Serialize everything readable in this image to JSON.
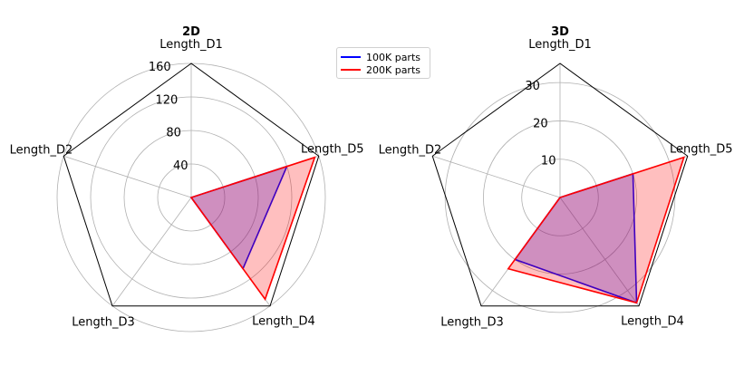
{
  "chart_data": [
    {
      "type": "radar",
      "title": "2D",
      "axes": [
        "Length_D1",
        "Length_D2",
        "Length_D3",
        "Length_D4",
        "Length_D5"
      ],
      "rlim": [
        0,
        160
      ],
      "rticks": [
        40,
        80,
        120,
        160
      ],
      "grid": true,
      "series": [
        {
          "name": "100K parts",
          "color": "#0000ff",
          "fill": "#0000ff",
          "values": [
            0,
            0,
            0,
            105,
            120
          ]
        },
        {
          "name": "200K parts",
          "color": "#ff0000",
          "fill": "#ff0000",
          "values": [
            0,
            0,
            0,
            150,
            155
          ]
        }
      ]
    },
    {
      "type": "radar",
      "title": "3D",
      "axes": [
        "Length_D1",
        "Length_D2",
        "Length_D3",
        "Length_D4",
        "Length_D5"
      ],
      "rlim": [
        0,
        35
      ],
      "rticks": [
        10,
        20,
        30
      ],
      "grid": true,
      "series": [
        {
          "name": "100K parts",
          "color": "#0000ff",
          "fill": "#0000ff",
          "values": [
            0,
            0,
            20,
            34,
            20
          ]
        },
        {
          "name": "200K parts",
          "color": "#ff0000",
          "fill": "#ff0000",
          "values": [
            0,
            0,
            23,
            34,
            34
          ]
        }
      ]
    }
  ],
  "legend": {
    "placement": "between-charts-top",
    "entries": [
      {
        "label": "100K parts",
        "color": "#0000ff"
      },
      {
        "label": "200K parts",
        "color": "#ff0000"
      }
    ]
  }
}
